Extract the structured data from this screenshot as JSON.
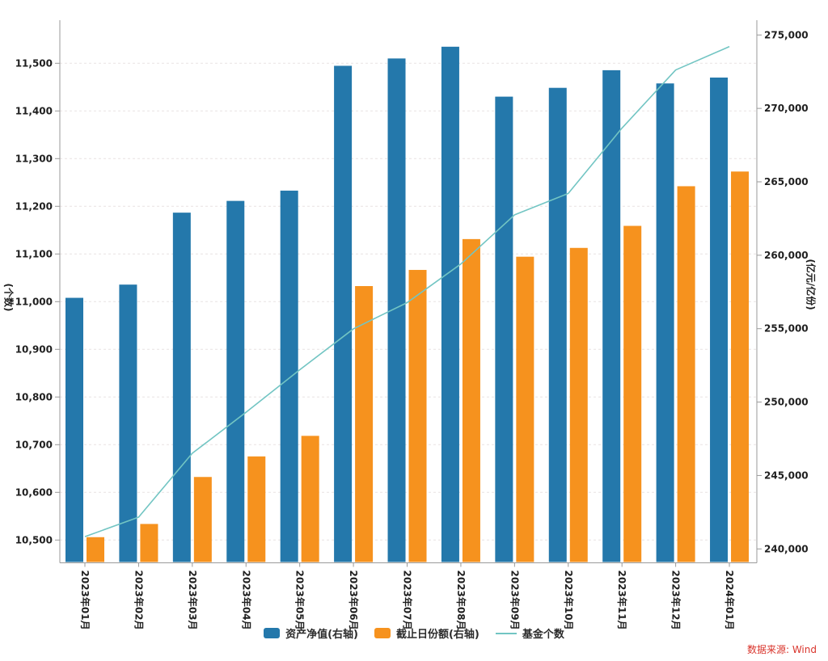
{
  "page": {
    "source_note": "数据来源: Wind"
  },
  "chart_data": {
    "type": "bar",
    "subtype": "dual-axis combo (grouped bars + line)",
    "title": "",
    "categories": [
      "2023年01月",
      "2023年02月",
      "2023年03月",
      "2023年04月",
      "2023年05月",
      "2023年06月",
      "2023年07月",
      "2023年08月",
      "2023年09月",
      "2023年10月",
      "2023年11月",
      "2023年12月",
      "2024年01月"
    ],
    "series": [
      {
        "name": "资产净值(右轴)",
        "type": "bar",
        "axis": "right",
        "color": "#2478ab",
        "values": [
          257100,
          258000,
          262900,
          263700,
          264400,
          272900,
          273400,
          274200,
          270800,
          271400,
          272600,
          271700,
          272100
        ]
      },
      {
        "name": "截止日份额(右轴)",
        "type": "bar",
        "axis": "right",
        "color": "#f6921e",
        "values": [
          240800,
          241700,
          244900,
          246300,
          247700,
          257900,
          259000,
          261100,
          259900,
          260500,
          262000,
          264700,
          265700
        ]
      },
      {
        "name": "基金个数",
        "type": "line",
        "axis": "left",
        "color": "#72c5c3",
        "values": [
          10507,
          10548,
          10682,
          10768,
          10857,
          10943,
          10998,
          11079,
          11182,
          11227,
          11364,
          11486,
          11535
        ]
      }
    ],
    "left_axis": {
      "label": "(个数)",
      "min": 10500,
      "max": 11500,
      "step": 100,
      "tick_labels": [
        "10,500",
        "10,600",
        "10,700",
        "10,800",
        "10,900",
        "11,000",
        "11,100",
        "11,200",
        "11,300",
        "11,400",
        "11,500"
      ]
    },
    "right_axis": {
      "label": "(亿元/亿份)",
      "min": 240000,
      "max": 275000,
      "step": 5000,
      "tick_labels": [
        "240,000",
        "245,000",
        "250,000",
        "255,000",
        "260,000",
        "265,000",
        "270,000",
        "275,000"
      ]
    },
    "legend": {
      "position": "bottom-center",
      "entries": [
        "资产净值(右轴)",
        "截止日份额(右轴)",
        "基金个数"
      ]
    },
    "grid": {
      "horizontal": true,
      "style": "dashed",
      "aligned_to": "left_axis",
      "color": "#e8e2e2"
    },
    "axis_color": "#9a9a9a",
    "x_label_rotation": 90
  }
}
